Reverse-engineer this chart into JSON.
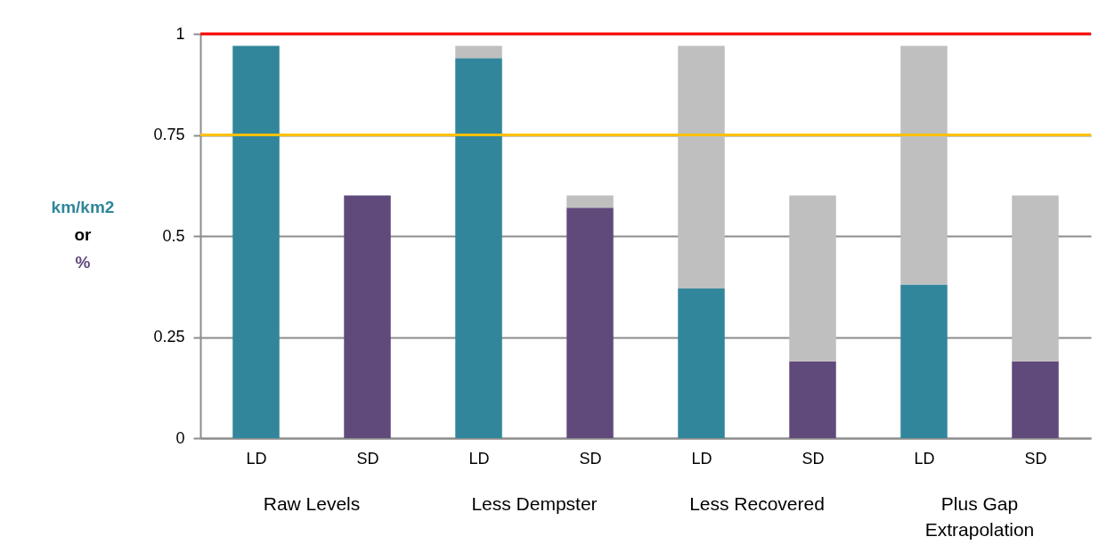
{
  "chart_data": {
    "type": "bar",
    "stacked": true,
    "categories": [
      "LD",
      "SD",
      "LD",
      "SD",
      "LD",
      "SD",
      "LD",
      "SD"
    ],
    "series": [
      {
        "colors": [
          "#31869b",
          "#604a7b",
          "#31869b",
          "#604a7b",
          "#31869b",
          "#604a7b",
          "#31869b",
          "#604a7b"
        ],
        "values": [
          0.97,
          0.6,
          0.94,
          0.57,
          0.37,
          0.19,
          0.38,
          0.19
        ]
      },
      {
        "color": "#bfbfbf",
        "values": [
          0,
          0,
          0.03,
          0.03,
          0.6,
          0.41,
          0.59,
          0.41
        ]
      }
    ],
    "ylabel": "km/km2\nor\n%",
    "ylim": [
      0,
      1
    ],
    "yticks": [
      0,
      0.25,
      0.5,
      0.75,
      1
    ],
    "grid": "y",
    "ref_lines": [
      {
        "axis": "y",
        "value": 1,
        "color": "#ff0000"
      },
      {
        "axis": "y",
        "value": 0.75,
        "color": "#ffc000"
      }
    ],
    "annotations": [
      "Raw Levels",
      "Less Dempster",
      "Less Recovered",
      "Plus Gap\nExtrapolation"
    ]
  }
}
